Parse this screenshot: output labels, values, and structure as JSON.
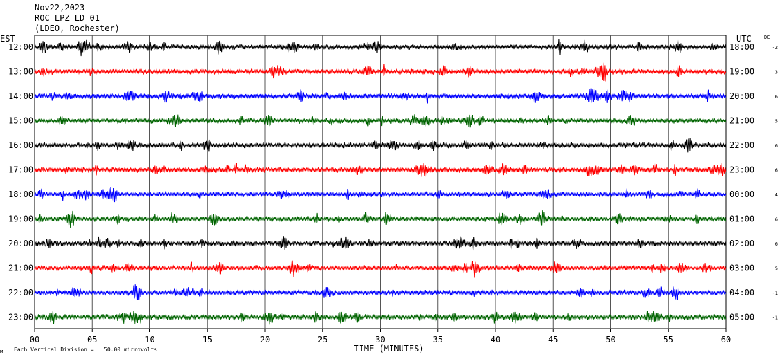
{
  "header": {
    "date": "Nov22,2023",
    "station": "ROC LPZ LD 01",
    "network": "(LDEO, Rochester)"
  },
  "left_axis_label": "EST",
  "right_axis_label": "UTC",
  "dc_label": "DC",
  "footer": {
    "scale_note": "Each Vertical Division =   50.00 microvolts",
    "corner_mark": "M"
  },
  "chart_data": {
    "type": "line",
    "title": "Nov22,2023 ROC LPZ LD 01 (LDEO, Rochester)",
    "xlabel": "TIME (MINUTES)",
    "xlim": [
      0,
      60
    ],
    "x_ticks": [
      "00",
      "05",
      "10",
      "15",
      "20",
      "25",
      "30",
      "35",
      "40",
      "45",
      "50",
      "55",
      "60"
    ],
    "grid": true,
    "trace_colors": [
      "#000000",
      "#ff0000",
      "#0000ff",
      "#006400"
    ],
    "rows": [
      {
        "est": "12:00",
        "utc": "18:00",
        "dc": "-2"
      },
      {
        "est": "13:00",
        "utc": "19:00",
        "dc": "3"
      },
      {
        "est": "14:00",
        "utc": "20:00",
        "dc": "6"
      },
      {
        "est": "15:00",
        "utc": "21:00",
        "dc": "5"
      },
      {
        "est": "16:00",
        "utc": "22:00",
        "dc": "6"
      },
      {
        "est": "17:00",
        "utc": "23:00",
        "dc": "6"
      },
      {
        "est": "18:00",
        "utc": "00:00",
        "dc": "4"
      },
      {
        "est": "19:00",
        "utc": "01:00",
        "dc": "6"
      },
      {
        "est": "20:00",
        "utc": "02:00",
        "dc": "6"
      },
      {
        "est": "21:00",
        "utc": "03:00",
        "dc": "5"
      },
      {
        "est": "22:00",
        "utc": "04:00",
        "dc": "-1"
      },
      {
        "est": "23:00",
        "utc": "05:00",
        "dc": "-1"
      }
    ]
  }
}
